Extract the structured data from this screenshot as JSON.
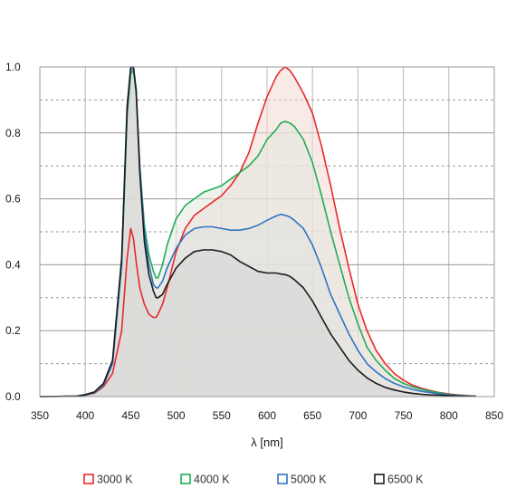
{
  "chart_data": {
    "type": "line",
    "title": "",
    "xlabel": "λ [nm]",
    "ylabel": "",
    "xlim": [
      350,
      850
    ],
    "ylim": [
      0,
      1.0
    ],
    "xticks": [
      350,
      400,
      450,
      500,
      550,
      600,
      650,
      700,
      750,
      800,
      850
    ],
    "yticks": [
      0,
      0.2,
      0.4,
      0.6,
      0.8,
      1.0
    ],
    "xtick_labels": [
      "350",
      "400",
      "450",
      "500",
      "550",
      "600",
      "650",
      "700",
      "750",
      "800",
      "850"
    ],
    "ytick_labels": [
      "0.0",
      "0.2",
      "0.4",
      "0.6",
      "0.8",
      "1.0"
    ],
    "grid": {
      "vertical": "solid",
      "horizontal_major": "solid",
      "horizontal_minor": "dashed"
    },
    "legend_position": "bottom",
    "series": [
      {
        "name": "3000 K",
        "color": "#e8292b",
        "fill": "#f3d9d3",
        "x": [
          350,
          390,
          400,
          410,
          420,
          430,
          440,
          446,
          450,
          453,
          456,
          460,
          465,
          470,
          475,
          478,
          480,
          485,
          490,
          500,
          510,
          520,
          530,
          540,
          550,
          560,
          570,
          580,
          590,
          600,
          610,
          615,
          620,
          625,
          630,
          640,
          650,
          660,
          670,
          680,
          690,
          700,
          710,
          720,
          730,
          740,
          750,
          760,
          770,
          780,
          790,
          800,
          810,
          820,
          830
        ],
        "y": [
          0,
          0.001,
          0.004,
          0.01,
          0.03,
          0.07,
          0.2,
          0.42,
          0.51,
          0.48,
          0.41,
          0.33,
          0.28,
          0.25,
          0.24,
          0.24,
          0.25,
          0.28,
          0.33,
          0.44,
          0.51,
          0.55,
          0.57,
          0.59,
          0.61,
          0.64,
          0.68,
          0.74,
          0.83,
          0.91,
          0.97,
          0.99,
          1.0,
          0.99,
          0.97,
          0.92,
          0.86,
          0.76,
          0.64,
          0.51,
          0.39,
          0.28,
          0.2,
          0.14,
          0.1,
          0.07,
          0.05,
          0.035,
          0.025,
          0.018,
          0.012,
          0.008,
          0.005,
          0.003,
          0.001
        ]
      },
      {
        "name": "4000 K",
        "color": "#1fae56",
        "fill": "#e3e8de",
        "x": [
          350,
          390,
          400,
          410,
          420,
          430,
          440,
          446,
          450,
          453,
          456,
          460,
          465,
          470,
          475,
          478,
          480,
          485,
          490,
          500,
          510,
          520,
          530,
          540,
          550,
          560,
          570,
          580,
          590,
          600,
          610,
          615,
          620,
          625,
          630,
          640,
          650,
          660,
          670,
          680,
          690,
          700,
          710,
          720,
          730,
          740,
          750,
          760,
          770,
          780,
          790,
          800,
          810,
          820,
          830
        ],
        "y": [
          0,
          0.001,
          0.005,
          0.012,
          0.035,
          0.1,
          0.4,
          0.85,
          0.98,
          0.99,
          0.92,
          0.7,
          0.52,
          0.43,
          0.38,
          0.36,
          0.36,
          0.4,
          0.46,
          0.54,
          0.58,
          0.6,
          0.62,
          0.63,
          0.64,
          0.66,
          0.68,
          0.7,
          0.73,
          0.78,
          0.81,
          0.83,
          0.835,
          0.83,
          0.82,
          0.78,
          0.71,
          0.61,
          0.5,
          0.4,
          0.3,
          0.22,
          0.15,
          0.11,
          0.08,
          0.055,
          0.04,
          0.03,
          0.022,
          0.016,
          0.011,
          0.007,
          0.004,
          0.002,
          0.001
        ]
      },
      {
        "name": "5000 K",
        "color": "#2f73c2",
        "fill": "#e2e2e2",
        "x": [
          350,
          390,
          400,
          410,
          420,
          430,
          440,
          446,
          450,
          453,
          456,
          460,
          465,
          470,
          475,
          478,
          480,
          485,
          490,
          500,
          510,
          520,
          530,
          540,
          550,
          560,
          570,
          580,
          590,
          600,
          610,
          615,
          620,
          625,
          630,
          640,
          650,
          660,
          670,
          680,
          690,
          700,
          710,
          720,
          730,
          740,
          750,
          760,
          770,
          780,
          790,
          800,
          810,
          820,
          830
        ],
        "y": [
          0,
          0.001,
          0.005,
          0.012,
          0.035,
          0.1,
          0.4,
          0.86,
          0.99,
          1.0,
          0.93,
          0.7,
          0.5,
          0.4,
          0.34,
          0.33,
          0.33,
          0.35,
          0.39,
          0.45,
          0.49,
          0.51,
          0.515,
          0.515,
          0.51,
          0.505,
          0.505,
          0.51,
          0.52,
          0.535,
          0.548,
          0.553,
          0.55,
          0.545,
          0.535,
          0.51,
          0.46,
          0.39,
          0.31,
          0.25,
          0.19,
          0.14,
          0.1,
          0.075,
          0.055,
          0.04,
          0.03,
          0.022,
          0.016,
          0.012,
          0.008,
          0.005,
          0.003,
          0.002,
          0.001
        ]
      },
      {
        "name": "6500 K",
        "color": "#1a1a1a",
        "fill": "#d6d6d4",
        "x": [
          350,
          390,
          400,
          410,
          420,
          430,
          440,
          446,
          450,
          453,
          456,
          460,
          465,
          470,
          475,
          478,
          480,
          485,
          490,
          500,
          510,
          520,
          530,
          540,
          550,
          560,
          570,
          580,
          590,
          600,
          610,
          615,
          620,
          625,
          630,
          640,
          650,
          660,
          670,
          680,
          690,
          700,
          710,
          720,
          730,
          740,
          750,
          760,
          770,
          780,
          790,
          800,
          810,
          820,
          830
        ],
        "y": [
          0,
          0.001,
          0.006,
          0.014,
          0.04,
          0.11,
          0.42,
          0.88,
          1.0,
          1.0,
          0.93,
          0.68,
          0.47,
          0.37,
          0.32,
          0.3,
          0.3,
          0.31,
          0.34,
          0.39,
          0.42,
          0.44,
          0.445,
          0.445,
          0.44,
          0.43,
          0.41,
          0.395,
          0.38,
          0.375,
          0.375,
          0.372,
          0.37,
          0.365,
          0.355,
          0.33,
          0.29,
          0.24,
          0.19,
          0.15,
          0.11,
          0.08,
          0.057,
          0.04,
          0.028,
          0.02,
          0.014,
          0.01,
          0.007,
          0.005,
          0.004,
          0.003,
          0.002,
          0.001,
          0.001
        ]
      }
    ]
  }
}
